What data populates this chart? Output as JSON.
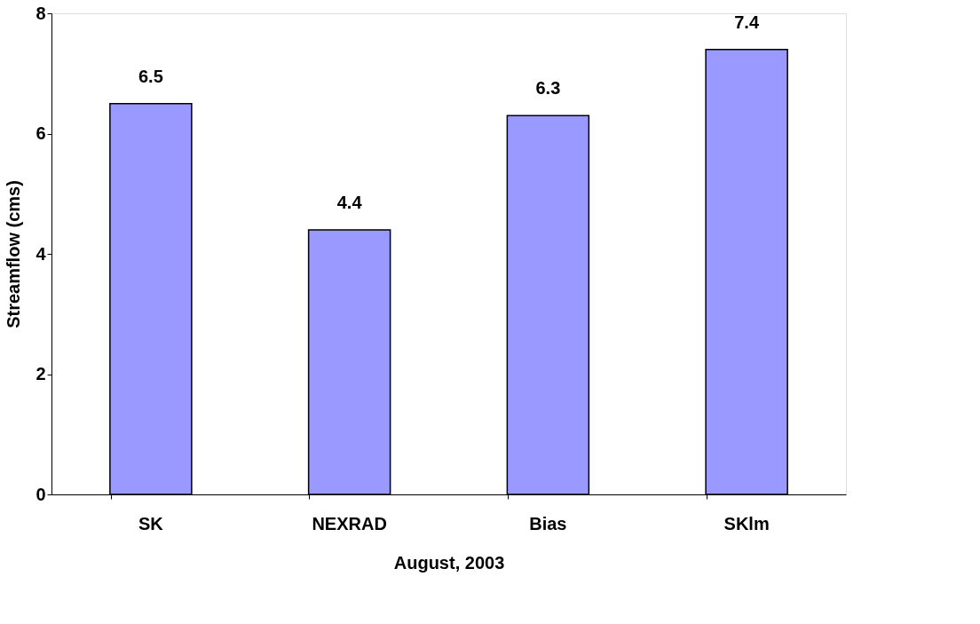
{
  "chart_data": {
    "type": "bar",
    "xlabel": "August, 2003",
    "ylabel": "Streamflow (cms)",
    "categories": [
      "SK",
      "NEXRAD",
      "Bias",
      "SKlm"
    ],
    "values": [
      6.5,
      4.4,
      6.3,
      7.4
    ],
    "color": "#9999ff",
    "ylim": [
      0,
      8
    ],
    "yticks": [
      0,
      2,
      4,
      6,
      8
    ],
    "grid": false,
    "data_labels": true
  }
}
